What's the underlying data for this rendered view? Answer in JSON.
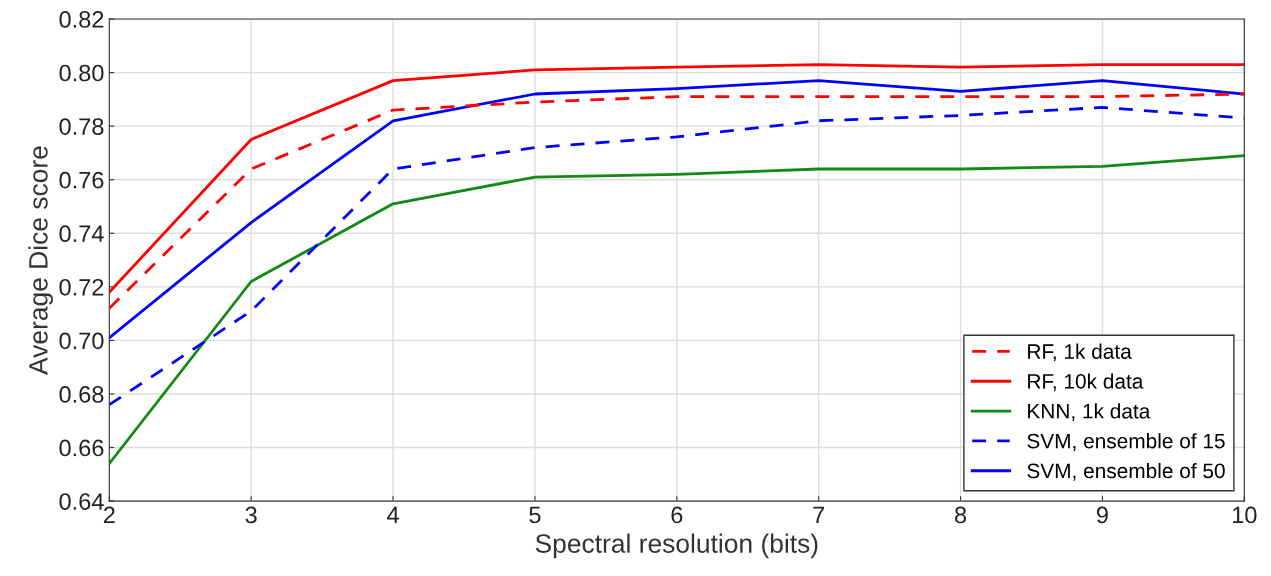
{
  "chart_data": {
    "type": "line",
    "xlabel": "Spectral resolution (bits)",
    "ylabel": "Average Dice score",
    "x": [
      2,
      3,
      4,
      5,
      6,
      7,
      8,
      9,
      10
    ],
    "series": [
      {
        "name": "RF, 1k data",
        "color": "#ff0000",
        "line_style": "dashed",
        "values": [
          0.712,
          0.764,
          0.786,
          0.789,
          0.791,
          0.791,
          0.791,
          0.791,
          0.792
        ]
      },
      {
        "name": "RF, 10k data",
        "color": "#ff0000",
        "line_style": "solid",
        "values": [
          0.718,
          0.775,
          0.797,
          0.801,
          0.802,
          0.803,
          0.802,
          0.803,
          0.803
        ]
      },
      {
        "name": "KNN, 1k data",
        "color": "#138a13",
        "line_style": "solid",
        "values": [
          0.654,
          0.722,
          0.751,
          0.761,
          0.762,
          0.764,
          0.764,
          0.765,
          0.769
        ]
      },
      {
        "name": "SVM, ensemble of 15",
        "color": "#0000ff",
        "line_style": "dashed",
        "values": [
          0.676,
          0.711,
          0.764,
          0.772,
          0.776,
          0.782,
          0.784,
          0.787,
          0.783
        ]
      },
      {
        "name": "SVM, ensemble of 50",
        "color": "#0000ff",
        "line_style": "solid",
        "values": [
          0.701,
          0.744,
          0.782,
          0.792,
          0.794,
          0.797,
          0.793,
          0.797,
          0.792
        ]
      }
    ],
    "xlim": [
      2,
      10
    ],
    "xticks": [
      2,
      3,
      4,
      5,
      6,
      7,
      8,
      9,
      10
    ],
    "ylim": [
      0.64,
      0.82
    ],
    "yticks": [
      {
        "value": 0.64,
        "label": "0.64"
      },
      {
        "value": 0.66,
        "label": "0.66"
      },
      {
        "value": 0.68,
        "label": "0.68"
      },
      {
        "value": 0.7,
        "label": "0.70"
      },
      {
        "value": 0.72,
        "label": "0.72"
      },
      {
        "value": 0.74,
        "label": "0.74"
      },
      {
        "value": 0.76,
        "label": "0.76"
      },
      {
        "value": 0.78,
        "label": "0.78"
      },
      {
        "value": 0.8,
        "label": "0.80"
      },
      {
        "value": 0.82,
        "label": "0.82"
      }
    ],
    "grid": true,
    "legend": "bottom right",
    "marker": "none"
  }
}
